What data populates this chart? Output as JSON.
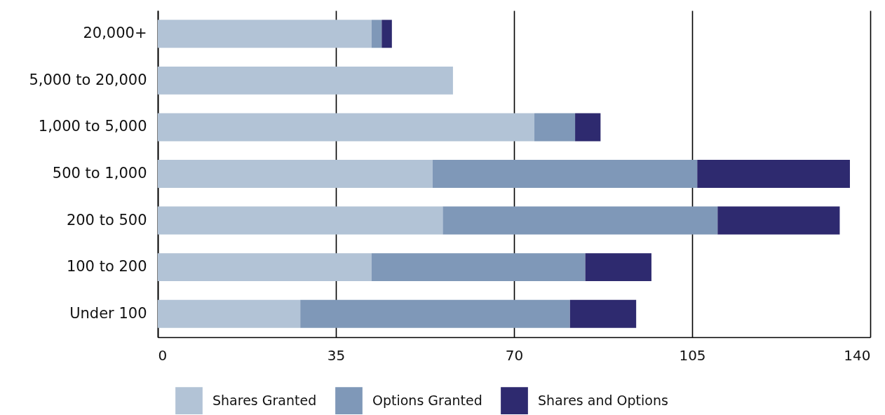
{
  "chart_data": {
    "type": "bar",
    "orientation": "horizontal",
    "stacked": true,
    "categories": [
      "20,000+",
      "5,000 to 20,000",
      "1,000 to 5,000",
      "500 to 1,000",
      "200 to 500",
      "100 to 200",
      "Under 100"
    ],
    "series": [
      {
        "name": "Shares Granted",
        "color": "#b2c3d6",
        "values": [
          42,
          58,
          74,
          54,
          56,
          42,
          28
        ]
      },
      {
        "name": "Options Granted",
        "color": "#7f98b8",
        "values": [
          2,
          null,
          8,
          52,
          54,
          42,
          53
        ]
      },
      {
        "name": "Shares and Options",
        "color": "#2e2a6f",
        "values": [
          2,
          null,
          5,
          30,
          24,
          13,
          13
        ]
      }
    ],
    "xlim": [
      0,
      140
    ],
    "xticks": [
      0,
      35,
      70,
      105,
      140
    ],
    "grid": "x",
    "legend": "bottom"
  }
}
